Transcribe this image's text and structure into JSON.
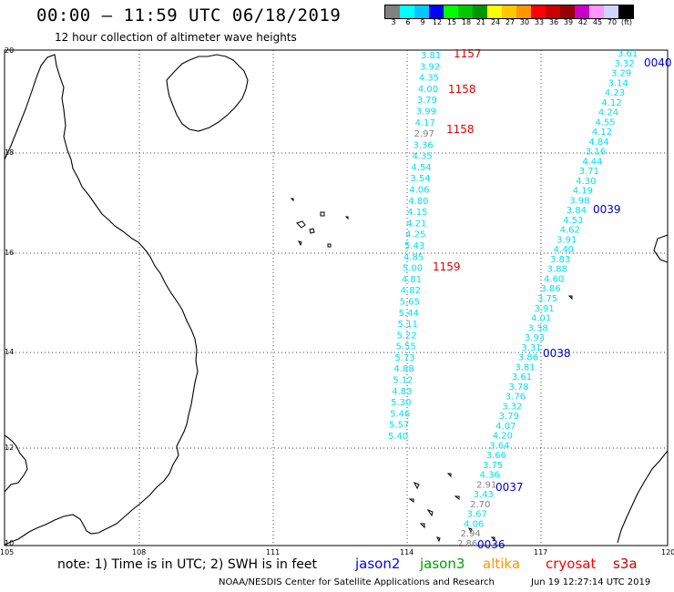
{
  "title": "00:00 – 11:59 UTC 06/18/2019",
  "subtitle": "12 hour collection of altimeter wave heights",
  "legend": {
    "colors": [
      "#808080",
      "#00ffff",
      "#00c8ff",
      "#0000ff",
      "#00ff00",
      "#00c800",
      "#009600",
      "#ffff00",
      "#ffc800",
      "#ff9600",
      "#ff0000",
      "#c80000",
      "#960000",
      "#c800c8",
      "#ff96ff",
      "#d2d2ff",
      "#000000"
    ],
    "labels": [
      "3",
      "6",
      "9",
      "12",
      "15",
      "18",
      "21",
      "24",
      "27",
      "30",
      "33",
      "36",
      "39",
      "42",
      "45",
      "70",
      "(ft)"
    ]
  },
  "axes": {
    "lon_ticks": [
      "105",
      "108",
      "111",
      "114",
      "117",
      "120"
    ],
    "lat_ticks": [
      "20",
      "18",
      "16",
      "14",
      "12",
      "10"
    ]
  },
  "track_west": {
    "color": "#00e0f0",
    "values": [
      "3.81",
      "3.92",
      "4.35",
      "4.00",
      "3.79",
      "3.99",
      "4.17",
      "2.97",
      "3.36",
      "4.35",
      "4.54",
      "3.54",
      "4.06",
      "4.80",
      "4.15",
      "4.21",
      "4.25",
      "5.43",
      "4.85",
      "5.00",
      "4.81",
      "4.82",
      "5.65",
      "5.44",
      "5.11",
      "5.22",
      "5.55",
      "5.73",
      "4.88",
      "5.12",
      "4.83",
      "5.30",
      "5.46",
      "5.57",
      "5.40"
    ]
  },
  "track_east": {
    "color": "#00e0f0",
    "values": [
      "3.61",
      "3.32",
      "3.29",
      "3.14",
      "4.23",
      "4.12",
      "4.24",
      "4.55",
      "4.12",
      "4.84",
      "3.16",
      "4.44",
      "3.71",
      "4.30",
      "4.19",
      "3.98",
      "3.84",
      "4.53",
      "4.62",
      "3.91",
      "4.40",
      "3.83",
      "3.88",
      "4.60",
      "3.86",
      "3.75",
      "3.91",
      "4.01",
      "3.38",
      "3.93",
      "3.31",
      "3.86",
      "3.81",
      "3.61",
      "3.78",
      "3.76",
      "3.32",
      "3.79",
      "4.07",
      "4.20",
      "3.64",
      "3.66",
      "3.75",
      "4.36",
      "2.91",
      "3.43",
      "2.70",
      "3.67",
      "4.06",
      "2.94",
      "2.86"
    ]
  },
  "time_labels": [
    {
      "text": "1157",
      "color": "#dd0000"
    },
    {
      "text": "1158",
      "color": "#dd0000"
    },
    {
      "text": "1158",
      "color": "#dd0000"
    },
    {
      "text": "1159",
      "color": "#dd0000"
    },
    {
      "text": "0040",
      "color": "#0000cc"
    },
    {
      "text": "0039",
      "color": "#0000cc"
    },
    {
      "text": "0038",
      "color": "#0000cc"
    },
    {
      "text": "0037",
      "color": "#0000cc"
    },
    {
      "text": "0036",
      "color": "#0000cc"
    }
  ],
  "note": "note: 1) Time is in UTC; 2) SWH is in feet",
  "satellites": [
    {
      "name": "jason2",
      "color": "#0000ff"
    },
    {
      "name": "jason3",
      "color": "#00a000"
    },
    {
      "name": "altika",
      "color": "#ff9600"
    },
    {
      "name": "cryosat",
      "color": "#ff0000"
    },
    {
      "name": "s3a",
      "color": "#c80000"
    }
  ],
  "footer": "NOAA/NESDIS Center for Satellite Applications and Research",
  "footer_time": "Jun 19 12:27:14 UTC 2019"
}
